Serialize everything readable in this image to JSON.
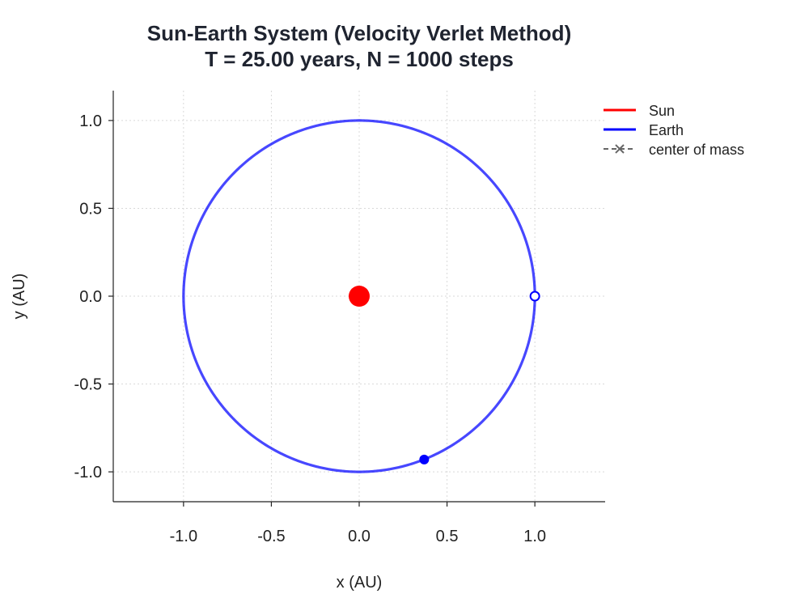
{
  "chart_data": {
    "type": "line",
    "title": "Sun-Earth System (Velocity Verlet Method)",
    "subtitle": "T = 25.00 years, N = 1000 steps",
    "xlabel": "x (AU)",
    "ylabel": "y (AU)",
    "xlim": [
      -1.4,
      1.4
    ],
    "ylim": [
      -1.17,
      1.17
    ],
    "x_ticks": [
      -1.0,
      -0.5,
      0.0,
      0.5,
      1.0
    ],
    "y_ticks": [
      -1.0,
      -0.5,
      0.0,
      0.5,
      1.0
    ],
    "x_tick_labels": [
      "-1.0",
      "-0.5",
      "0.0",
      "0.5",
      "1.0"
    ],
    "y_tick_labels": [
      "-1.0",
      "-0.5",
      "0.0",
      "0.5",
      "1.0"
    ],
    "grid": true,
    "legend_position": "top-right",
    "series": [
      {
        "name": "Sun",
        "color": "#ff0000",
        "orbit_center": [
          0.0,
          0.0
        ],
        "orbit_radius": 0.0,
        "final_position": [
          0.0,
          0.0
        ]
      },
      {
        "name": "Earth",
        "color": "#0000ff",
        "orbit_center": [
          0.0,
          0.0
        ],
        "orbit_radius": 1.0,
        "initial_position": [
          1.0,
          0.0
        ],
        "final_position": [
          0.37,
          -0.93
        ]
      }
    ],
    "center_of_mass": {
      "name": "center of mass",
      "color": "#666666",
      "position": [
        0.0,
        0.0
      ]
    }
  }
}
